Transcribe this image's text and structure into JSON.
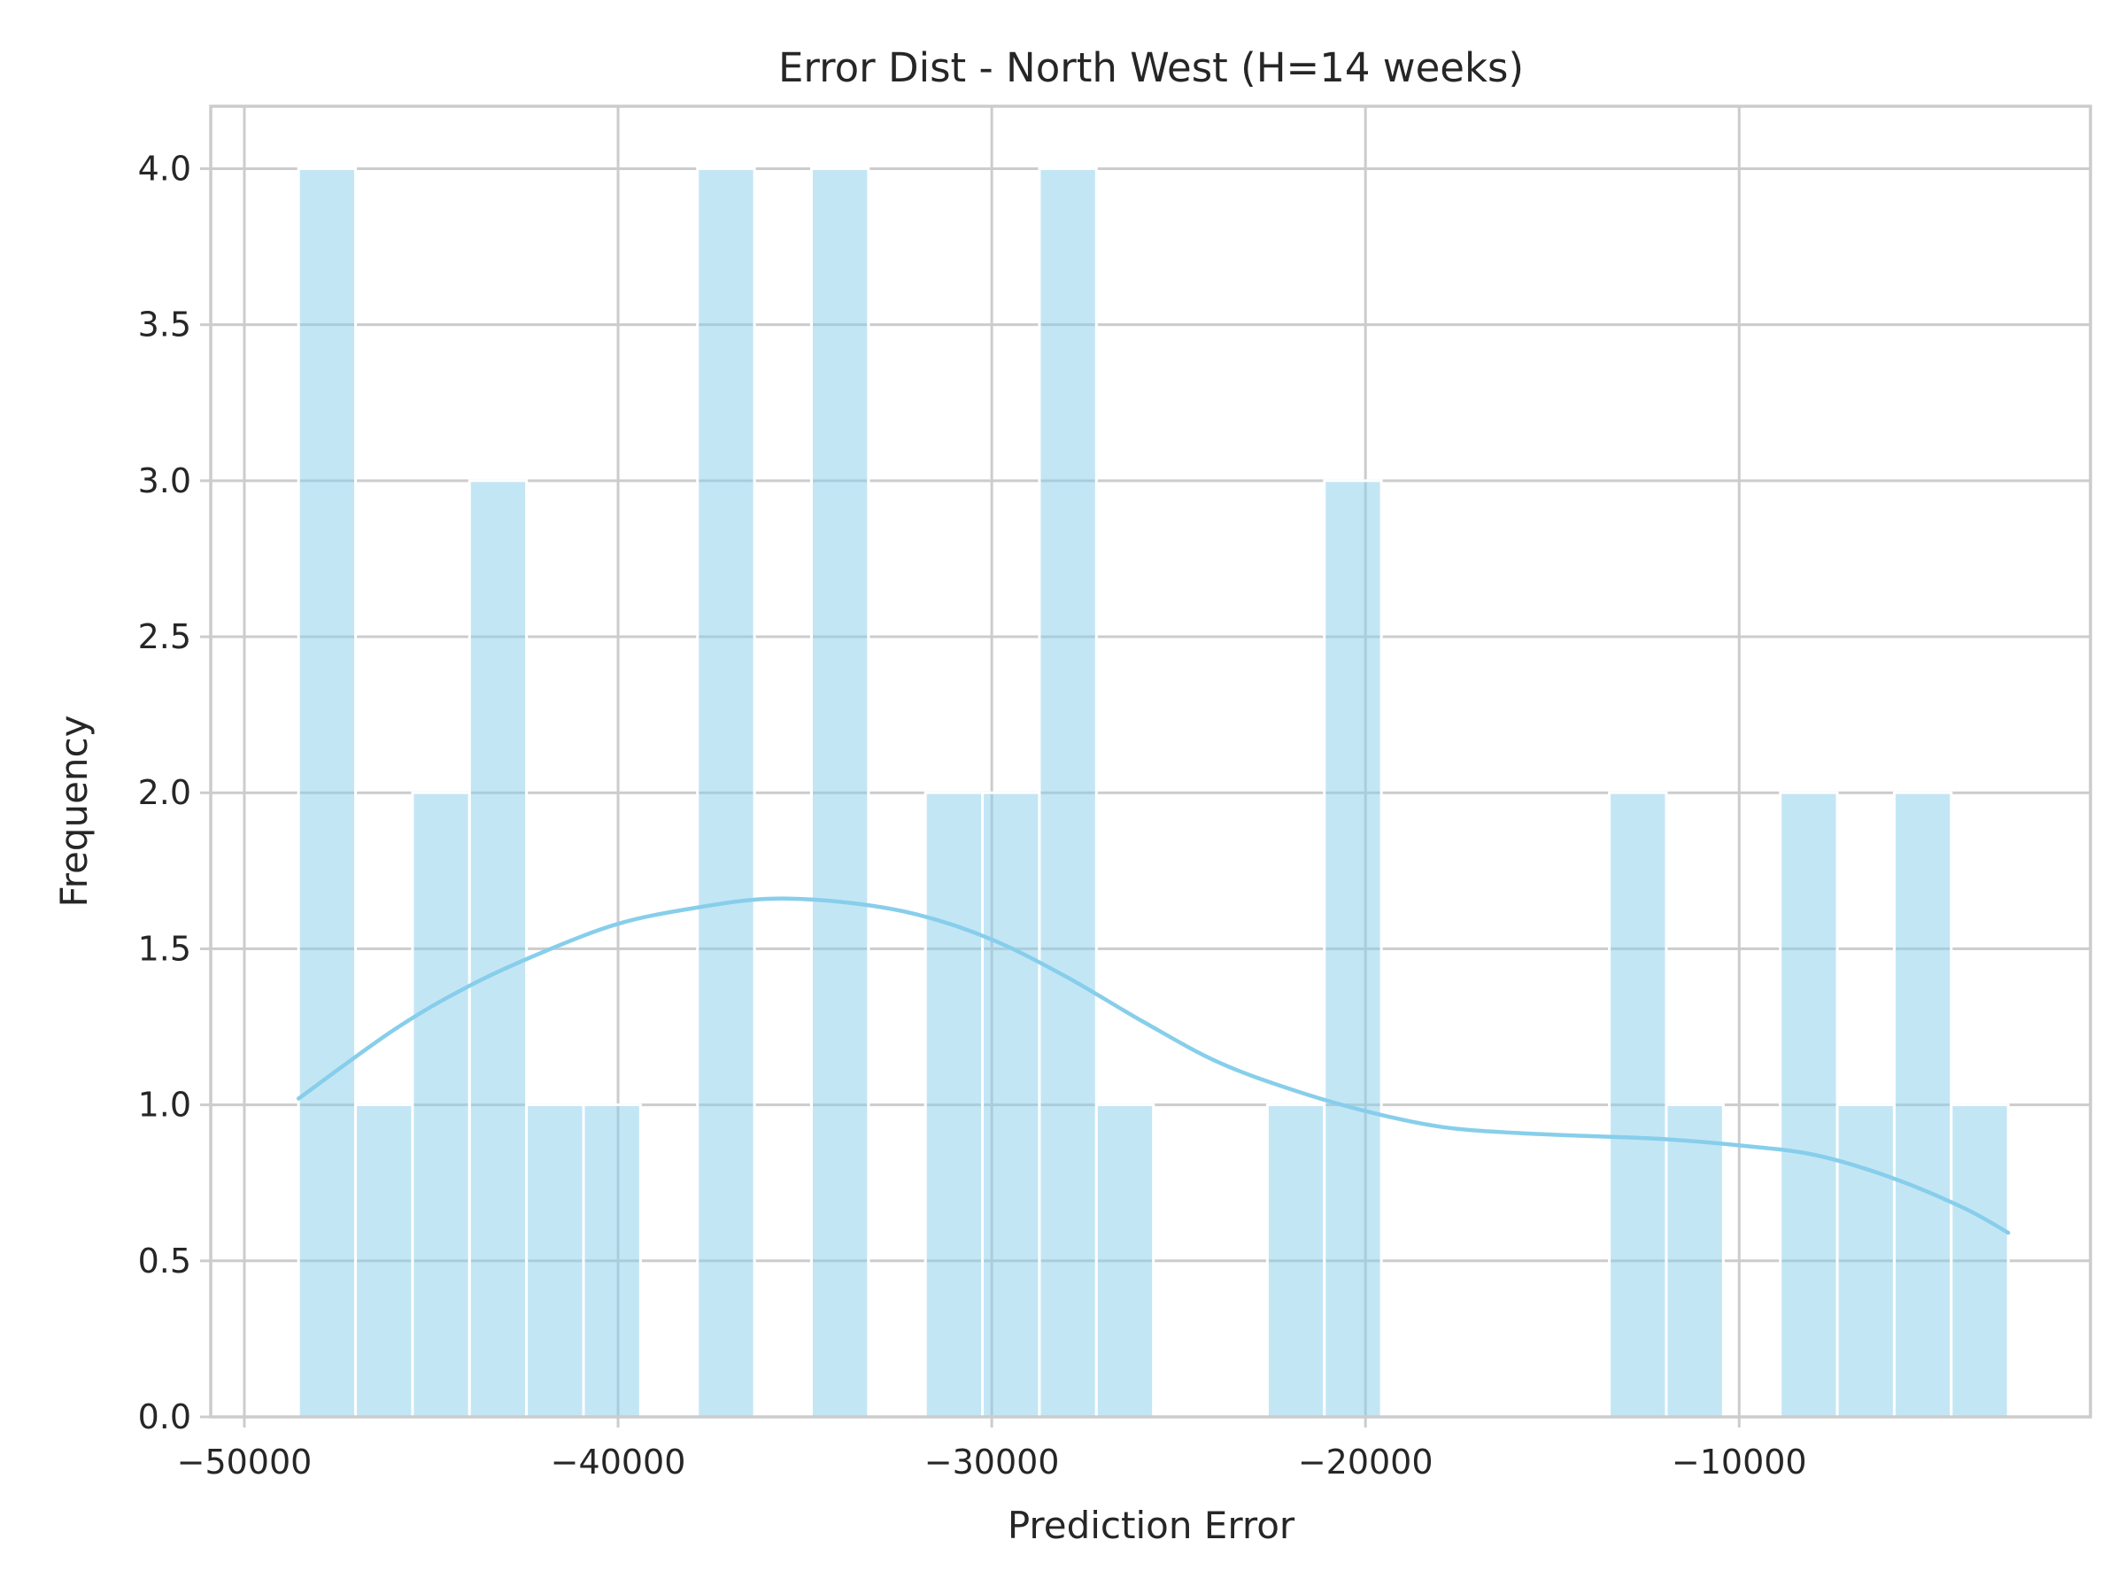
{
  "chart_data": {
    "type": "bar",
    "subtype": "histogram-with-kde",
    "title": "Error Dist - North West (H=14 weeks)",
    "xlabel": "Prediction Error",
    "ylabel": "Frequency",
    "xlim": [
      -50900,
      -600
    ],
    "ylim": [
      0,
      4.2
    ],
    "xticks": [
      -50000,
      -40000,
      -30000,
      -20000,
      -10000
    ],
    "xtick_labels": [
      "−50000",
      "−40000",
      "−30000",
      "−20000",
      "−10000"
    ],
    "yticks": [
      0,
      0.5,
      1,
      1.5,
      2,
      2.5,
      3,
      3.5,
      4
    ],
    "ytick_labels": [
      "0.0",
      "0.5",
      "1.0",
      "1.5",
      "2.0",
      "2.5",
      "3.0",
      "3.5",
      "4.0"
    ],
    "grid": true,
    "legend": "none",
    "bin_start": -48550,
    "bin_width": 1525,
    "bin_counts": [
      4,
      1,
      2,
      3,
      1,
      1,
      0,
      4,
      0,
      4,
      0,
      2,
      2,
      4,
      1,
      0,
      0,
      1,
      3,
      0,
      0,
      0,
      0,
      2,
      1,
      0,
      2,
      1,
      2,
      1
    ],
    "kde": {
      "x": [
        -48550,
        -46000,
        -44000,
        -42000,
        -40000,
        -38000,
        -36000,
        -34000,
        -32000,
        -30000,
        -28000,
        -26000,
        -24000,
        -22000,
        -20000,
        -18000,
        -16000,
        -14000,
        -12000,
        -10000,
        -8000,
        -6000,
        -4000,
        -2800
      ],
      "y": [
        1.02,
        1.24,
        1.38,
        1.49,
        1.58,
        1.63,
        1.66,
        1.65,
        1.61,
        1.53,
        1.41,
        1.27,
        1.14,
        1.05,
        0.98,
        0.93,
        0.91,
        0.9,
        0.89,
        0.87,
        0.84,
        0.77,
        0.67,
        0.59
      ]
    },
    "colors": {
      "bar": "#87ceeb",
      "kde": "#87ceeb",
      "grid": "#cccccc",
      "text": "#262626"
    }
  }
}
